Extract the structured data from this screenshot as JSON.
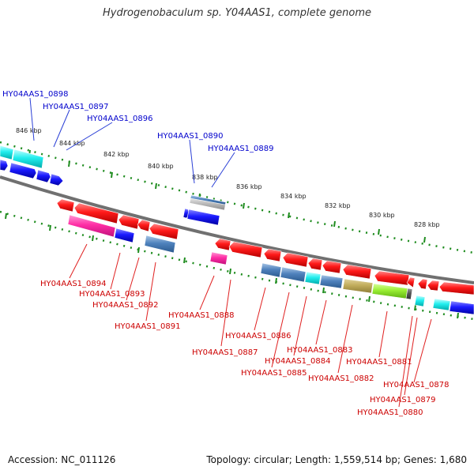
{
  "title": "Hydrogenobaculum sp. Y04AAS1, complete genome",
  "footer": {
    "accession": "Accession: NC_011126",
    "summary": "Topology: circular; Length: 1,559,514 bp; Genes: 1,680"
  },
  "colors": {
    "backbone": "#808080",
    "tick": "#1e8c1e",
    "label_forward": "#0000cc",
    "label_reverse": "#cc0000",
    "leader_forward": "#2a3fd6",
    "leader_reverse": "#e02020"
  },
  "scale_labels": [
    "846 kbp",
    "844 kbp",
    "842 kbp",
    "840 kbp",
    "838 kbp",
    "836 kbp",
    "834 kbp",
    "832 kbp",
    "830 kbp",
    "828 kbp"
  ],
  "forward_labels": [
    "HY04AAS1_0898",
    "HY04AAS1_0897",
    "HY04AAS1_0896",
    "HY04AAS1_0890",
    "HY04AAS1_0889"
  ],
  "reverse_labels": [
    "HY04AAS1_0894",
    "HY04AAS1_0893",
    "HY04AAS1_0892",
    "HY04AAS1_0891",
    "HY04AAS1_0888",
    "HY04AAS1_0887",
    "HY04AAS1_0886",
    "HY04AAS1_0885",
    "HY04AAS1_0884",
    "HY04AAS1_0883",
    "HY04AAS1_0882",
    "HY04AAS1_0881",
    "HY04AAS1_0880",
    "HY04AAS1_0879",
    "HY04AAS1_0878"
  ]
}
